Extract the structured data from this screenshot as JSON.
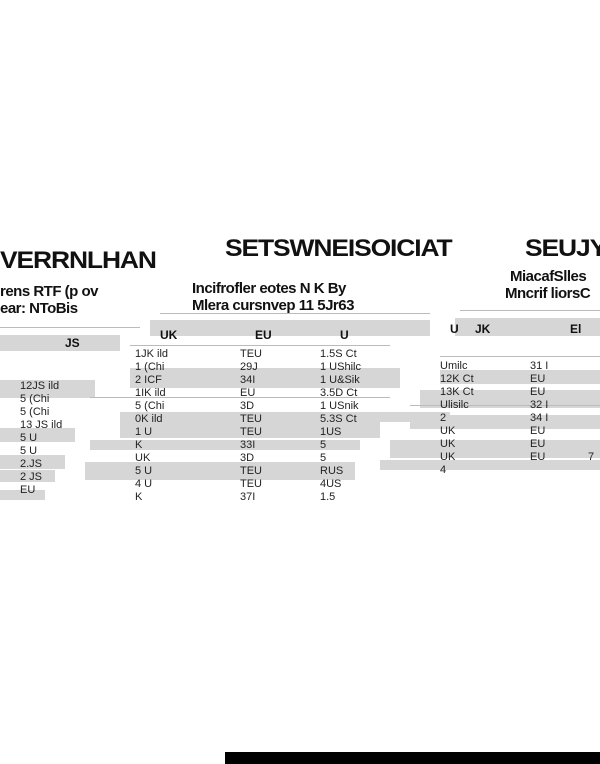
{
  "titles": [
    "VERRNLHAN",
    "SETSWNEISOICIAT",
    "SEUJY"
  ],
  "subtitles": [
    "rens RTF (p ov",
    "ear: NToBis",
    "Incifrofler eotes N K By",
    "Mlera cursnvep 11 5Jr63",
    "MiacafSlles",
    "Mncrif liorsC"
  ],
  "headers": [
    "JS",
    "UK",
    "EU",
    "U",
    "JK",
    "U",
    "El"
  ],
  "cells": [
    "1JK ild",
    "1 (Chi",
    "2 ICF",
    "1IK ild",
    "TEU",
    "29J",
    "34I",
    "EU",
    "1.5S Ct",
    "1 UShilc",
    "1 U&Sik",
    "3.5D Ct",
    "12JS ild",
    "5 (Chi",
    "5 (Chi",
    "13 JS ild",
    "5 (Chi",
    "0K ild",
    "1 U",
    "K",
    "3D",
    "TEU",
    "TEU",
    "33I",
    "1 USnik",
    "5.3S Ct",
    "1US",
    "5",
    "5 U",
    "5 U",
    "2.JS",
    "2 JS",
    "EU",
    "UK",
    "5 U",
    "4 U",
    "K",
    "3D",
    "TEU",
    "TEU",
    "37I",
    "5",
    "RUS",
    "4US",
    "1.5",
    "Umilc",
    "12K Ct",
    "13K Ct",
    "Ulisilc",
    "31 I",
    "EU",
    "EU",
    "32 I",
    "2",
    "UK",
    "UK",
    "34 I",
    "EU",
    "EU",
    "UK",
    "EU",
    "4",
    "7"
  ],
  "colors": {
    "band": "#d6d6d6",
    "bar": "#000000"
  }
}
